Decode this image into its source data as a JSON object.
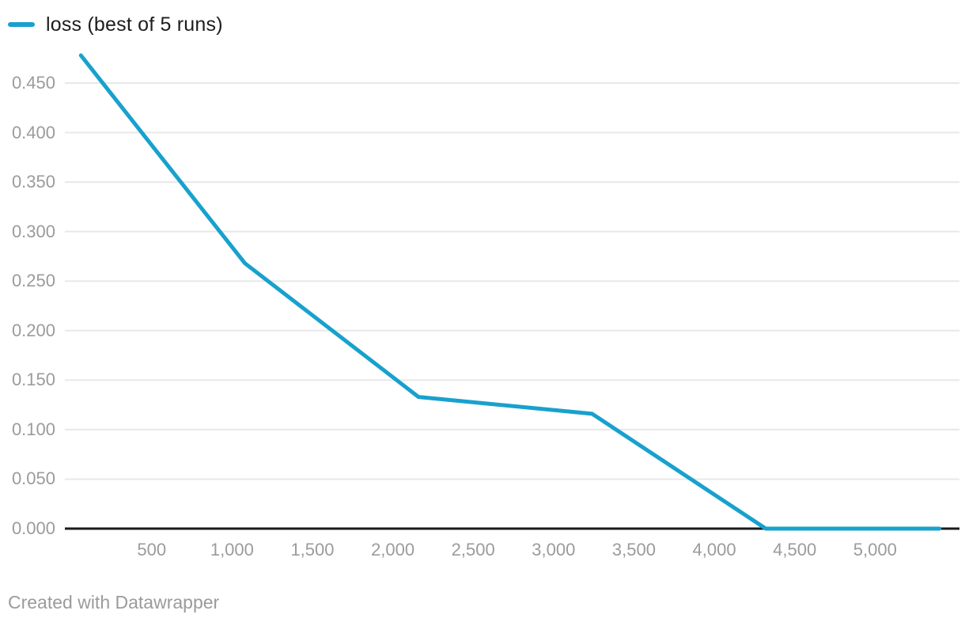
{
  "legend": {
    "label": "loss (best of 5 runs)"
  },
  "footer": {
    "text": "Created with Datawrapper"
  },
  "colors": {
    "line": "#18a1cd",
    "grid": "#e8e8e8",
    "axis_baseline": "#1a1a1a",
    "tick_text": "#9b9b9b",
    "legend_text": "#1d1d1d"
  },
  "chart_data": {
    "type": "line",
    "title": "",
    "xlabel": "",
    "ylabel": "",
    "legend_position": "top-left",
    "grid": "horizontal-only",
    "x": [
      60,
      1080,
      2160,
      3240,
      4320,
      5400
    ],
    "series": [
      {
        "name": "loss (best of 5 runs)",
        "values": [
          0.478,
          0.268,
          0.133,
          0.116,
          0.0,
          0.0
        ]
      }
    ],
    "x_tick_values": [
      500,
      1000,
      1500,
      2000,
      2500,
      3000,
      3500,
      4000,
      4500,
      5000
    ],
    "x_tick_labels": [
      "500",
      "1,000",
      "1,500",
      "2,000",
      "2,500",
      "3,000",
      "3,500",
      "4,000",
      "4,500",
      "5,000"
    ],
    "y_tick_values": [
      0.0,
      0.05,
      0.1,
      0.15,
      0.2,
      0.25,
      0.3,
      0.35,
      0.4,
      0.45
    ],
    "y_tick_labels": [
      "0.000",
      "0.050",
      "0.100",
      "0.150",
      "0.200",
      "0.250",
      "0.300",
      "0.350",
      "0.400",
      "0.450"
    ],
    "xlim": [
      -40,
      5525
    ],
    "ylim": [
      0,
      0.45
    ]
  }
}
